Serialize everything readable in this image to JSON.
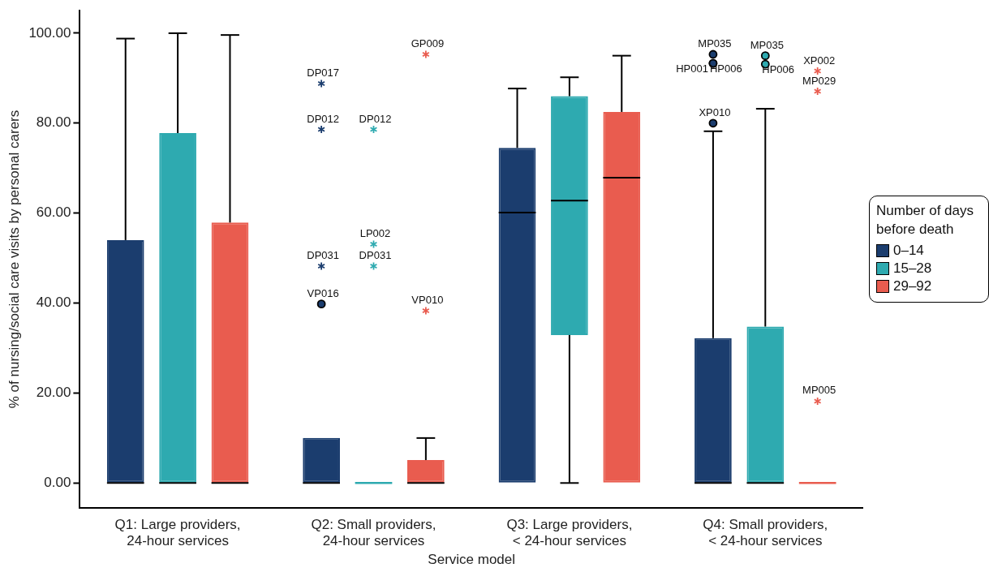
{
  "chart_data": {
    "type": "box",
    "xlabel": "Service model",
    "ylabel": "% of nursing/social care visits by personal carers",
    "legend_title": "Number of days before death",
    "legend": "right",
    "grid": false,
    "categories": [
      "Q1: Large providers, 24-hour services",
      "Q2: Small providers, 24-hour services",
      "Q3: Large providers, < 24-hour services",
      "Q4: Small providers, < 24-hour services"
    ],
    "ylim": [
      -5.5,
      105
    ],
    "yticks": [
      {
        "value": 0,
        "label": "0.00"
      },
      {
        "value": 20,
        "label": "20.00"
      },
      {
        "value": 40,
        "label": "40.00"
      },
      {
        "value": 60,
        "label": "60.00"
      },
      {
        "value": 80,
        "label": "80.00"
      },
      {
        "value": 100,
        "label": "100.00"
      }
    ],
    "series": [
      {
        "name": "0–14",
        "color": "#1b3d6e",
        "boxes": [
          {
            "low": 0,
            "q1": 0,
            "median": 0,
            "q3": 54.0,
            "high": 98.8
          },
          {
            "low": 0,
            "q1": 0,
            "median": 0,
            "q3": 10.0,
            "high": 10.0,
            "outliers": [
              88.8,
              78.6,
              48.2,
              39.8
            ]
          },
          {
            "low": 0,
            "q1": 0,
            "median": 60.1,
            "q3": 74.5,
            "high": 87.7
          },
          {
            "low": 0,
            "q1": 0,
            "median": 0,
            "q3": 32.2,
            "high": 78.2,
            "outliers": [
              95.3,
              93.3,
              93.3,
              80.0
            ]
          }
        ]
      },
      {
        "name": "15–28",
        "color": "#2eaab0",
        "boxes": [
          {
            "low": 0,
            "q1": 0,
            "median": 0,
            "q3": 77.8,
            "high": 100
          },
          {
            "low": 0,
            "q1": 0,
            "median": 0,
            "q3": 0,
            "high": 0,
            "outliers": [
              78.6,
              53.1,
              48.2
            ]
          },
          {
            "low": 0,
            "q1": 32.9,
            "median": 62.8,
            "q3": 86.0,
            "high": 90.2
          },
          {
            "low": 0,
            "q1": 0,
            "median": 0,
            "q3": 34.8,
            "high": 83.2,
            "outliers": [
              95.0,
              93.1
            ]
          }
        ]
      },
      {
        "name": "29–92",
        "color": "#e95c4f",
        "boxes": [
          {
            "low": 0,
            "q1": 0,
            "median": 0,
            "q3": 57.9,
            "high": 99.6
          },
          {
            "low": 0,
            "q1": 0,
            "median": 0,
            "q3": 5.1,
            "high": 10.0,
            "outliers": [
              95.3,
              38.3
            ]
          },
          {
            "low": 0,
            "q1": 0,
            "median": 67.9,
            "q3": 82.5,
            "high": 95.0
          },
          {
            "low": 0,
            "q1": 0,
            "median": 0,
            "q3": 0,
            "high": 0,
            "outliers": [
              91.6,
              87.1,
              18.2
            ]
          }
        ]
      }
    ],
    "annotations": [
      "DP017",
      "DP012",
      "DP031",
      "VP016",
      "MP035",
      "HP001",
      "HP006",
      "XP010",
      "DP012",
      "LP002",
      "DP031",
      "MP035",
      "HP006",
      "GP009",
      "VP010",
      "XP002",
      "MP029",
      "MP005"
    ]
  }
}
